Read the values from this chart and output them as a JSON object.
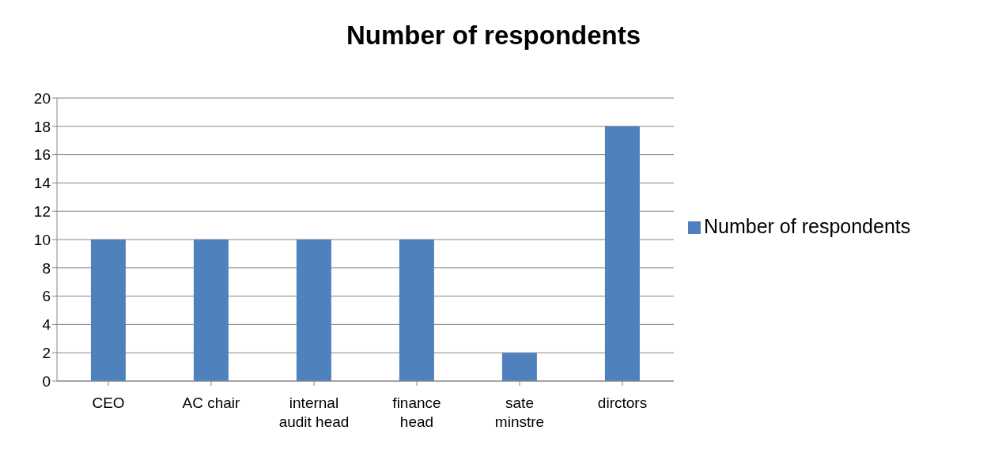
{
  "chart_data": {
    "type": "bar",
    "title": "Number of respondents",
    "categories": [
      "CEO",
      "AC chair",
      "internal audit head",
      "finance head",
      "sate minstre",
      "dirctors"
    ],
    "series": [
      {
        "name": "Number of respondents",
        "color": "#4f81bd",
        "values": [
          10,
          10,
          10,
          10,
          2,
          18
        ]
      }
    ],
    "ylim": [
      0,
      20
    ],
    "yticks": [
      0,
      2,
      4,
      6,
      8,
      10,
      12,
      14,
      16,
      18,
      20
    ],
    "grid": "y",
    "legend": "right"
  }
}
